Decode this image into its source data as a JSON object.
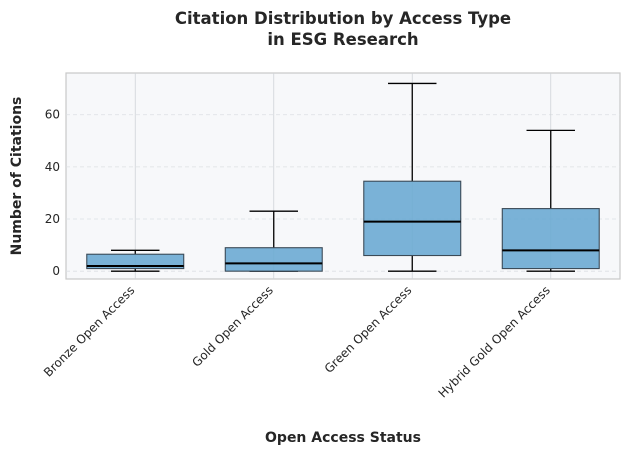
{
  "chart_data": {
    "type": "box",
    "title": [
      "Citation Distribution by Access Type",
      "in ESG Research"
    ],
    "xlabel": "Open Access Status",
    "ylabel": "Number of Citations",
    "ylim": [
      -3,
      76
    ],
    "yticks": [
      0,
      20,
      40,
      60
    ],
    "grid": true,
    "categories": [
      "Bronze Open Access",
      "Gold Open Access",
      "Green Open Access",
      "Hybrid Gold Open Access"
    ],
    "boxes": [
      {
        "min": 0,
        "q1": 1,
        "median": 2,
        "q3": 6.5,
        "max": 8
      },
      {
        "min": 0,
        "q1": 0,
        "median": 3,
        "q3": 9,
        "max": 23
      },
      {
        "min": 0,
        "q1": 6,
        "median": 19,
        "q3": 34.5,
        "max": 72
      },
      {
        "min": 0,
        "q1": 1,
        "median": 8,
        "q3": 24,
        "max": 54
      }
    ],
    "box_color": "#6baad3",
    "plot_background": "#f7f8fa"
  }
}
